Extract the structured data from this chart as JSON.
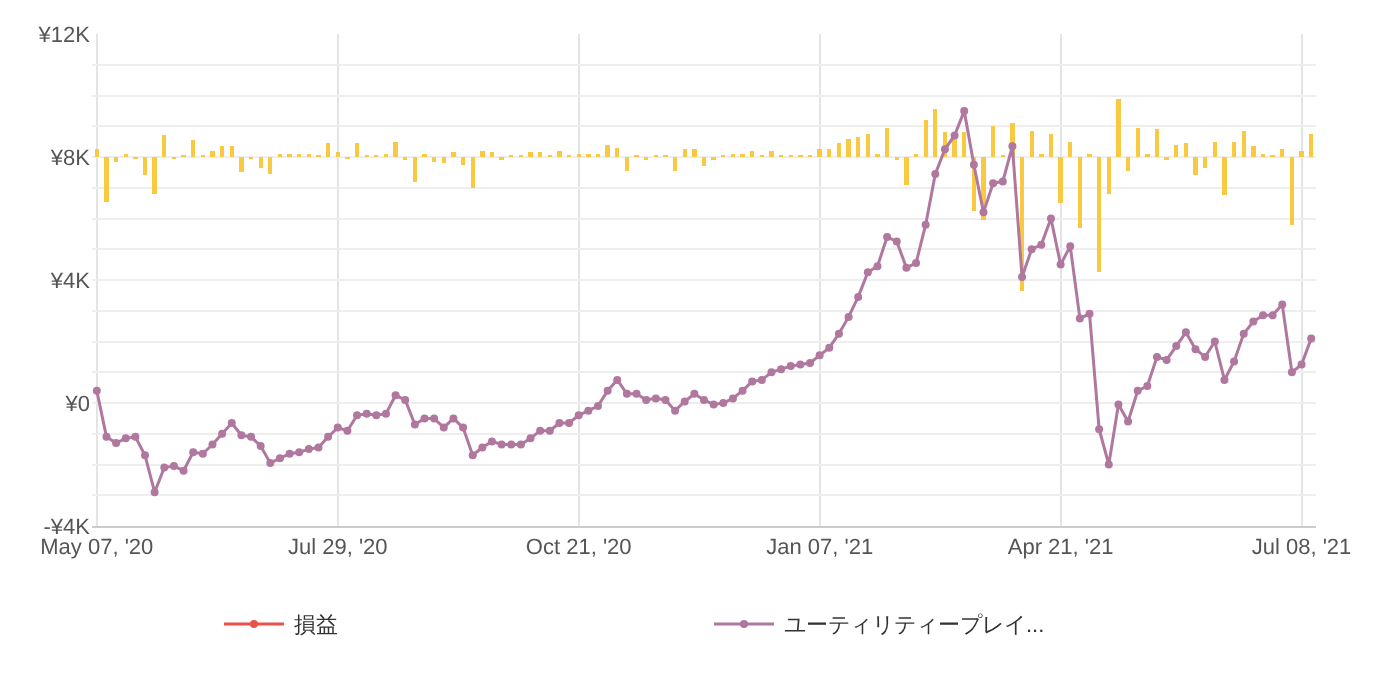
{
  "chart_data": {
    "type": "line",
    "categories": [
      "May 07, '20",
      null,
      null,
      null,
      null,
      null,
      null,
      null,
      null,
      null,
      null,
      null,
      null,
      null,
      null,
      null,
      null,
      null,
      null,
      null,
      null,
      null,
      null,
      null,
      null,
      "Jul 29, '20",
      null,
      null,
      null,
      null,
      null,
      null,
      null,
      null,
      null,
      null,
      null,
      null,
      null,
      null,
      null,
      null,
      null,
      null,
      null,
      null,
      null,
      null,
      null,
      null,
      "Oct 21, '20",
      null,
      null,
      null,
      null,
      null,
      null,
      null,
      null,
      null,
      null,
      null,
      null,
      null,
      null,
      null,
      null,
      null,
      null,
      null,
      null,
      null,
      null,
      null,
      null,
      "Jan 07, '21",
      null,
      null,
      null,
      null,
      null,
      null,
      null,
      null,
      null,
      null,
      null,
      null,
      null,
      null,
      null,
      null,
      null,
      null,
      null,
      null,
      null,
      null,
      null,
      null,
      "Apr 21, '21",
      null,
      null,
      null,
      null,
      null,
      null,
      null,
      null,
      null,
      null,
      null,
      null,
      null,
      null,
      null,
      null,
      null,
      null,
      null,
      null,
      null,
      null,
      null,
      null,
      "Jul 08, '21",
      null
    ],
    "series": [
      {
        "type": "bar",
        "color": "#f9c941",
        "values": [
          250,
          -1450,
          -150,
          100,
          -50,
          -600,
          -1200,
          700,
          -50,
          50,
          550,
          50,
          200,
          350,
          350,
          -500,
          -50,
          -350,
          -550,
          100,
          100,
          100,
          100,
          50,
          450,
          150,
          -50,
          450,
          50,
          50,
          100,
          500,
          -100,
          -800,
          100,
          -150,
          -200,
          150,
          -250,
          -1000,
          200,
          150,
          -100,
          50,
          50,
          150,
          150,
          50,
          200,
          50,
          100,
          100,
          100,
          400,
          300,
          -450,
          50,
          -100,
          50,
          50,
          -450,
          250,
          250,
          -300,
          -100,
          50,
          100,
          100,
          200,
          50,
          200,
          50,
          50,
          50,
          50,
          250,
          250,
          450,
          600,
          650,
          750,
          100,
          950,
          -100,
          -900,
          100,
          1200,
          1550,
          800,
          650,
          800,
          -1750,
          -2050,
          1000,
          50,
          1100,
          -4350,
          850,
          100,
          750,
          -1500,
          500,
          -2300,
          100,
          -3750,
          -1200,
          1900,
          -450,
          950,
          100,
          900,
          -100,
          400,
          450,
          -600,
          -350,
          500,
          -1250,
          500,
          850,
          350,
          100,
          50,
          250,
          -2200,
          200,
          750
        ],
        "base": [
          8000,
          8000,
          8000,
          8000,
          8000,
          8000,
          8000,
          8000,
          8000,
          8000,
          8000,
          8000,
          8000,
          8000,
          8000,
          8000,
          8000,
          8000,
          8000,
          8000,
          8000,
          8000,
          8000,
          8000,
          8000,
          8000,
          8000,
          8000,
          8000,
          8000,
          8000,
          8000,
          8000,
          8000,
          8000,
          8000,
          8000,
          8000,
          8000,
          8000,
          8000,
          8000,
          8000,
          8000,
          8000,
          8000,
          8000,
          8000,
          8000,
          8000,
          8000,
          8000,
          8000,
          8000,
          8000,
          8000,
          8000,
          8000,
          8000,
          8000,
          8000,
          8000,
          8000,
          8000,
          8000,
          8000,
          8000,
          8000,
          8000,
          8000,
          8000,
          8000,
          8000,
          8000,
          8000,
          8000,
          8000,
          8000,
          8000,
          8000,
          8000,
          8000,
          8000,
          8000,
          8000,
          8000,
          8000,
          8000,
          8000,
          8000,
          8000,
          8000,
          8000,
          8000,
          8000,
          8000,
          8000,
          8000,
          8000,
          8000,
          8000,
          8000,
          8000,
          8000,
          8000,
          8000,
          8000,
          8000,
          8000,
          8000,
          8000,
          8000,
          8000,
          8000,
          8000,
          8000,
          8000,
          8000,
          8000,
          8000,
          8000,
          8000,
          8000,
          8000,
          8000,
          8000,
          8000
        ]
      },
      {
        "name": "損益",
        "color": "#e8524a",
        "values": [
          null,
          null,
          null,
          null,
          null,
          null,
          null,
          null,
          null,
          null,
          null,
          null,
          null,
          null,
          null,
          null,
          null,
          null,
          null,
          null,
          null,
          null,
          null,
          null,
          null,
          null,
          null,
          null,
          null,
          null,
          null,
          null,
          null,
          null,
          null,
          null,
          null,
          null,
          null,
          null,
          null,
          null,
          null,
          null,
          null,
          null,
          null,
          null,
          null,
          null,
          null,
          null,
          null,
          null,
          null,
          null,
          null,
          null,
          null,
          null,
          null,
          null,
          null,
          null,
          null,
          null,
          null,
          null,
          null,
          null,
          null,
          null,
          null,
          null,
          null,
          null,
          null,
          null,
          null,
          null,
          null,
          null,
          null,
          null,
          null,
          null,
          null,
          null,
          null,
          null,
          null,
          null,
          null,
          null,
          null,
          null,
          null,
          null,
          null,
          null,
          null,
          null,
          null,
          null,
          null,
          null,
          null,
          null,
          null,
          null,
          null,
          null,
          null,
          null,
          null,
          null,
          null,
          null,
          null,
          null,
          null,
          null,
          null,
          null,
          null,
          null,
          null
        ]
      },
      {
        "name": "ユーティリティープレイ...",
        "color": "#b0779f",
        "values": [
          400,
          -1100,
          -1300,
          -1150,
          -1100,
          -1700,
          -2900,
          -2100,
          -2050,
          -2200,
          -1600,
          -1650,
          -1350,
          -1000,
          -650,
          -1050,
          -1100,
          -1400,
          -1950,
          -1800,
          -1650,
          -1600,
          -1500,
          -1450,
          -1100,
          -800,
          -900,
          -400,
          -350,
          -400,
          -350,
          250,
          100,
          -700,
          -500,
          -500,
          -800,
          -500,
          -800,
          -1700,
          -1450,
          -1250,
          -1350,
          -1350,
          -1350,
          -1150,
          -900,
          -900,
          -650,
          -650,
          -400,
          -250,
          -100,
          400,
          750,
          300,
          300,
          100,
          150,
          100,
          -250,
          50,
          300,
          100,
          -50,
          0,
          150,
          400,
          700,
          750,
          1000,
          1100,
          1200,
          1250,
          1300,
          1550,
          1800,
          2250,
          2800,
          3450,
          4250,
          4450,
          5400,
          5250,
          4400,
          4550,
          5800,
          7450,
          8250,
          8700,
          9500,
          7750,
          6200,
          7150,
          7200,
          8350,
          4100,
          5000,
          5150,
          6000,
          4500,
          5100,
          2750,
          2900,
          -850,
          -2000,
          -50,
          -600,
          400,
          550,
          1500,
          1400,
          1850,
          2300,
          1750,
          1500,
          2000,
          750,
          1350,
          2250,
          2650,
          2850,
          2850,
          3200,
          1000,
          1250,
          2100
        ]
      }
    ],
    "ylim": [
      -4000,
      12000
    ],
    "yticks": [
      {
        "value": -4000,
        "label": "-¥4K"
      },
      {
        "value": -3000,
        "label": null
      },
      {
        "value": -2000,
        "label": null
      },
      {
        "value": -1000,
        "label": null
      },
      {
        "value": 0,
        "label": "¥0"
      },
      {
        "value": 1000,
        "label": null
      },
      {
        "value": 2000,
        "label": null
      },
      {
        "value": 3000,
        "label": null
      },
      {
        "value": 4000,
        "label": "¥4K"
      },
      {
        "value": 5000,
        "label": null
      },
      {
        "value": 6000,
        "label": null
      },
      {
        "value": 7000,
        "label": null
      },
      {
        "value": 8000,
        "label": "¥8K"
      },
      {
        "value": 9000,
        "label": null
      },
      {
        "value": 10000,
        "label": null
      },
      {
        "value": 11000,
        "label": null
      },
      {
        "value": 12000,
        "label": "¥12K"
      }
    ],
    "grid": true,
    "legend": "bottom",
    "marker": "circle"
  }
}
